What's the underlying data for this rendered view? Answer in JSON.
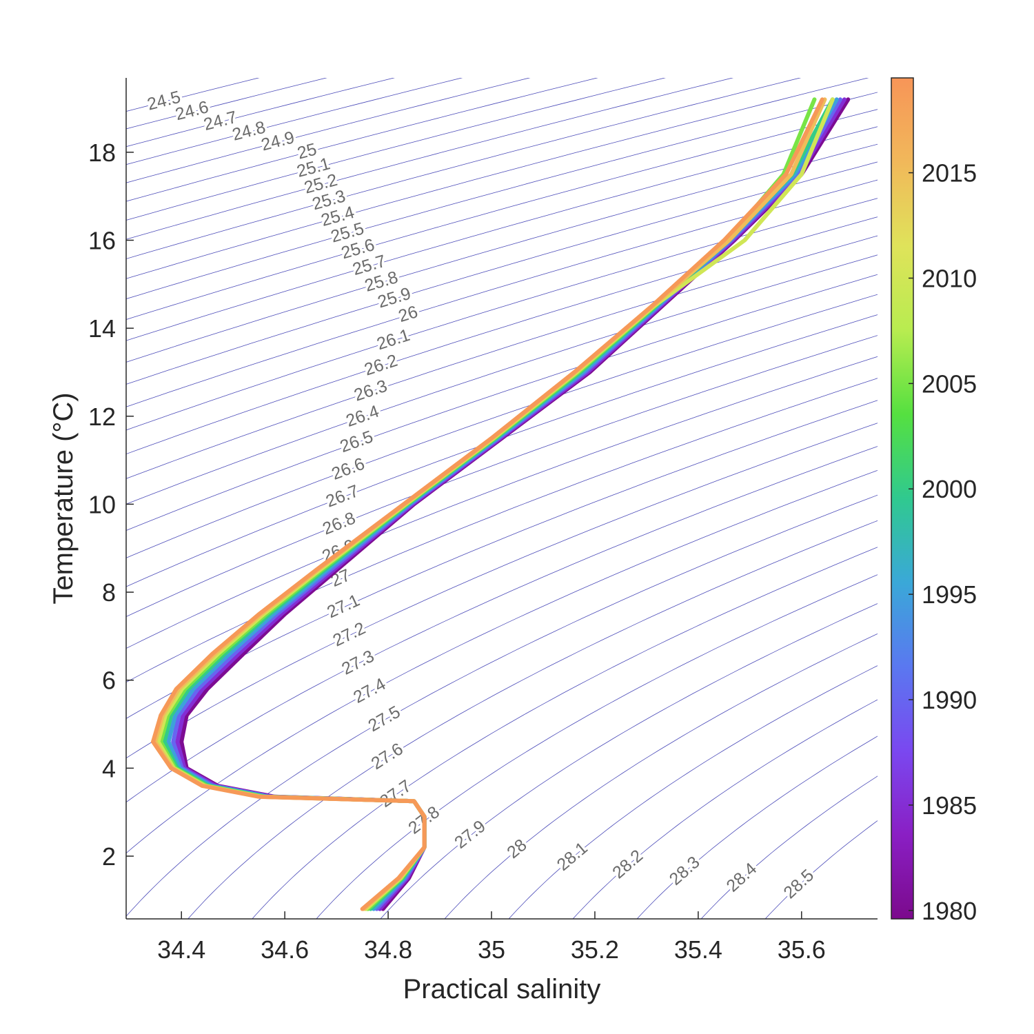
{
  "chart_data": {
    "type": "ts-diagram",
    "xlabel": "Practical salinity",
    "ylabel": "Temperature (°C)",
    "xlim": [
      34.293,
      35.747
    ],
    "ylim": [
      0.574,
      19.69
    ],
    "xticks": [
      34.4,
      34.6,
      34.8,
      35,
      35.2,
      35.4,
      35.6
    ],
    "yticks": [
      2,
      4,
      6,
      8,
      10,
      12,
      14,
      16,
      18
    ],
    "contour_color": "#4a4ab8",
    "contour_levels": [
      24.5,
      24.6,
      24.7,
      24.8,
      24.9,
      25,
      25.1,
      25.2,
      25.3,
      25.4,
      25.5,
      25.6,
      25.7,
      25.8,
      25.9,
      26,
      26.1,
      26.2,
      26.3,
      26.4,
      26.5,
      26.6,
      26.7,
      26.8,
      26.9,
      27,
      27.1,
      27.2,
      27.3,
      27.4,
      27.5,
      27.6,
      27.7,
      27.8,
      27.9,
      28,
      28.1,
      28.2,
      28.3,
      28.4,
      28.5
    ],
    "colorbar": {
      "clim": [
        1979.6,
        2019.5
      ],
      "ticks": [
        1980,
        1985,
        1990,
        1995,
        2000,
        2005,
        2010,
        2015
      ],
      "colormap": [
        "#7b0a8c",
        "#8a1fc4",
        "#7a48f0",
        "#5a78f0",
        "#3aa8d8",
        "#30c98f",
        "#55e040",
        "#b8ec50",
        "#dfe35a",
        "#f1b85a",
        "#f79558"
      ]
    },
    "series": [
      {
        "year": 1980,
        "y": [
          0.8,
          1.5,
          2.2,
          2.9,
          3.25,
          3.35,
          3.6,
          4.0,
          4.6,
          5.2,
          5.8,
          6.6,
          7.5,
          8.5,
          10,
          11.5,
          13,
          14.5,
          16,
          17.5,
          19.2
        ],
        "x": [
          34.79,
          34.84,
          34.87,
          34.87,
          34.85,
          34.58,
          34.47,
          34.41,
          34.4,
          34.41,
          34.45,
          34.52,
          34.6,
          34.7,
          34.85,
          35.02,
          35.19,
          35.33,
          35.47,
          35.6,
          35.69
        ]
      },
      {
        "year": 1985,
        "y": [
          0.8,
          1.5,
          2.2,
          2.9,
          3.25,
          3.35,
          3.6,
          4.0,
          4.6,
          5.2,
          5.8,
          6.6,
          7.5,
          8.5,
          10,
          11.5,
          13,
          14.5,
          16,
          17.5,
          19.2
        ],
        "x": [
          34.784,
          34.837,
          34.87,
          34.87,
          34.85,
          34.576,
          34.466,
          34.406,
          34.392,
          34.403,
          34.441,
          34.511,
          34.593,
          34.694,
          34.847,
          35.017,
          35.186,
          35.327,
          35.467,
          35.596,
          35.683
        ]
      },
      {
        "year": 1990,
        "y": [
          0.8,
          1.5,
          2.2,
          2.9,
          3.25,
          3.35,
          3.6,
          4.0,
          4.6,
          5.2,
          5.8,
          6.6,
          7.5,
          8.5,
          10,
          11.5,
          13,
          14.5,
          16,
          17.5,
          19.2
        ],
        "x": [
          34.778,
          34.834,
          34.87,
          34.87,
          34.85,
          34.571,
          34.461,
          34.401,
          34.384,
          34.395,
          34.432,
          34.502,
          34.585,
          34.688,
          34.844,
          35.014,
          35.181,
          35.324,
          35.464,
          35.591,
          35.675
        ]
      },
      {
        "year": 1995,
        "y": [
          0.8,
          1.5,
          2.2,
          2.9,
          3.25,
          3.35,
          3.6,
          4.0,
          4.6,
          5.2,
          5.8,
          6.6,
          7.5,
          8.5,
          10,
          11.5,
          13,
          14.5,
          16,
          17.5,
          19.2
        ],
        "x": [
          34.772,
          34.831,
          34.87,
          34.87,
          34.85,
          34.567,
          34.457,
          34.397,
          34.375,
          34.388,
          34.423,
          34.493,
          34.578,
          34.682,
          34.841,
          35.011,
          35.177,
          35.321,
          35.461,
          35.587,
          35.668
        ]
      },
      {
        "year": 2000,
        "y": [
          0.8,
          1.5,
          2.2,
          2.9,
          3.25,
          3.35,
          3.6,
          4.0,
          4.6,
          5.2,
          5.8,
          6.6,
          7.5,
          8.5,
          10,
          11.5,
          13,
          14.5,
          16,
          17.5,
          19.2
        ],
        "x": [
          34.766,
          34.828,
          34.87,
          34.87,
          34.85,
          34.562,
          34.452,
          34.392,
          34.367,
          34.38,
          34.414,
          34.484,
          34.57,
          34.676,
          34.838,
          35.008,
          35.172,
          35.318,
          35.458,
          35.582,
          35.66
        ]
      },
      {
        "year": 2005,
        "y": [
          0.8,
          1.5,
          2.2,
          2.9,
          3.25,
          3.35,
          3.6,
          4.0,
          4.6,
          5.2,
          5.8,
          6.6,
          7.5,
          8.5,
          10,
          11.5,
          13,
          14.5,
          16,
          17.5,
          19.2
        ],
        "x": [
          34.761,
          34.826,
          34.87,
          34.87,
          34.85,
          34.558,
          34.448,
          34.388,
          34.36,
          34.374,
          34.407,
          34.477,
          34.564,
          34.671,
          34.836,
          35.006,
          35.168,
          35.316,
          35.456,
          35.565,
          35.625
        ]
      },
      {
        "year": 2010,
        "y": [
          0.8,
          1.5,
          2.2,
          2.9,
          3.25,
          3.35,
          3.6,
          4.0,
          4.6,
          5.2,
          5.8,
          6.6,
          7.5,
          8.5,
          10,
          11.5,
          13,
          14.5,
          16,
          17.5,
          19.2
        ],
        "x": [
          34.757,
          34.824,
          34.87,
          34.87,
          34.85,
          34.555,
          34.445,
          34.385,
          34.355,
          34.369,
          34.401,
          34.471,
          34.559,
          34.667,
          34.834,
          35.004,
          35.165,
          35.314,
          35.49,
          35.6,
          35.66
        ]
      },
      {
        "year": 2015,
        "y": [
          0.8,
          1.5,
          2.2,
          2.9,
          3.25,
          3.35,
          3.6,
          4.0,
          4.6,
          5.2,
          5.8,
          6.6,
          7.5,
          8.5,
          10,
          11.5,
          13,
          14.5,
          16,
          17.5,
          19.2
        ],
        "x": [
          34.753,
          34.822,
          34.87,
          34.87,
          34.85,
          34.552,
          34.442,
          34.382,
          34.349,
          34.364,
          34.395,
          34.465,
          34.554,
          34.663,
          34.832,
          35.002,
          35.162,
          35.312,
          35.46,
          35.58,
          35.645
        ]
      },
      {
        "year": 2019,
        "y": [
          0.8,
          1.5,
          2.2,
          2.9,
          3.25,
          3.35,
          3.6,
          4.0,
          4.6,
          5.2,
          5.8,
          6.6,
          7.5,
          8.5,
          10,
          11.5,
          13,
          14.5,
          16,
          17.5,
          19.2
        ],
        "x": [
          34.75,
          34.82,
          34.87,
          34.87,
          34.85,
          34.55,
          34.44,
          34.38,
          34.345,
          34.36,
          34.39,
          34.46,
          34.55,
          34.66,
          34.83,
          35.0,
          35.16,
          35.31,
          35.45,
          35.57,
          35.64
        ]
      }
    ]
  }
}
